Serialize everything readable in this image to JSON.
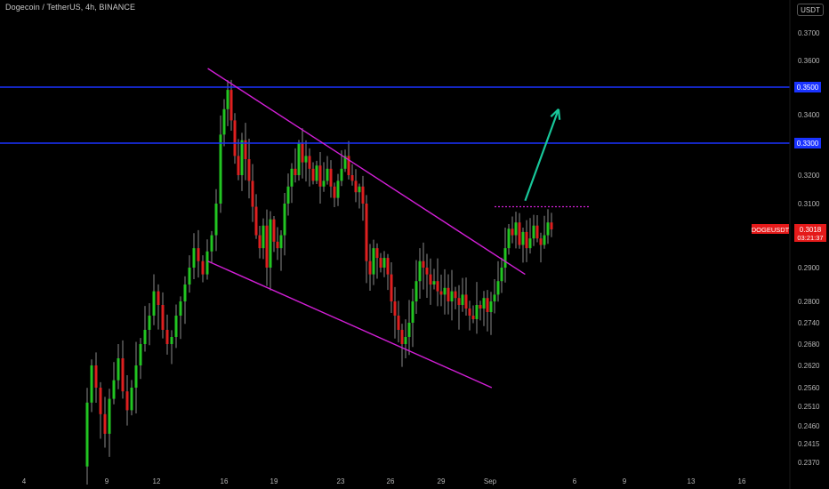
{
  "title": "Dogecoin / TetherUS, 4h, BINANCE",
  "currency": "USDT",
  "colors": {
    "background": "#000000",
    "up": "#22c522",
    "down": "#dd2020",
    "wick": "#8a8a8a",
    "level": "#1a33ff",
    "trend": "#d21fd6",
    "arrow": "#18c79a",
    "price_tag": "#e51a1a",
    "level_tag": "#1a33ff"
  },
  "chart_data": {
    "type": "candlestick",
    "symbol": "DOGEUSDT",
    "interval": "4h",
    "y_ticks": [
      "0.3700",
      "0.3600",
      "0.3400",
      "0.3200",
      "0.3100",
      "0.2900",
      "0.2800",
      "0.2740",
      "0.2680",
      "0.2620",
      "0.2560",
      "0.2510",
      "0.2460",
      "0.2415",
      "0.2370"
    ],
    "x_ticks": [
      "4",
      "9",
      "12",
      "16",
      "19",
      "23",
      "26",
      "29",
      "Sep",
      "6",
      "9",
      "13",
      "16"
    ],
    "levels": [
      {
        "label": "0.3500",
        "price": 0.35
      },
      {
        "label": "0.3300",
        "price": 0.33
      }
    ],
    "last_price": {
      "ticker": "DOGEUSDT",
      "price": "0.3018",
      "countdown": "03:21:37"
    },
    "trendlines": [
      {
        "from": {
          "date": "Aug 15",
          "price": 0.357
        },
        "to": {
          "date": "Sep 3",
          "price": 0.288
        }
      },
      {
        "from": {
          "date": "Aug 15",
          "price": 0.292
        },
        "to": {
          "date": "Sep 1",
          "price": 0.256
        }
      }
    ],
    "resistance": {
      "price": 0.309
    },
    "projection_arrow": {
      "from": {
        "date": "Sep 3",
        "price": 0.311
      },
      "to": {
        "date": "Sep 5",
        "price": 0.342
      }
    }
  }
}
